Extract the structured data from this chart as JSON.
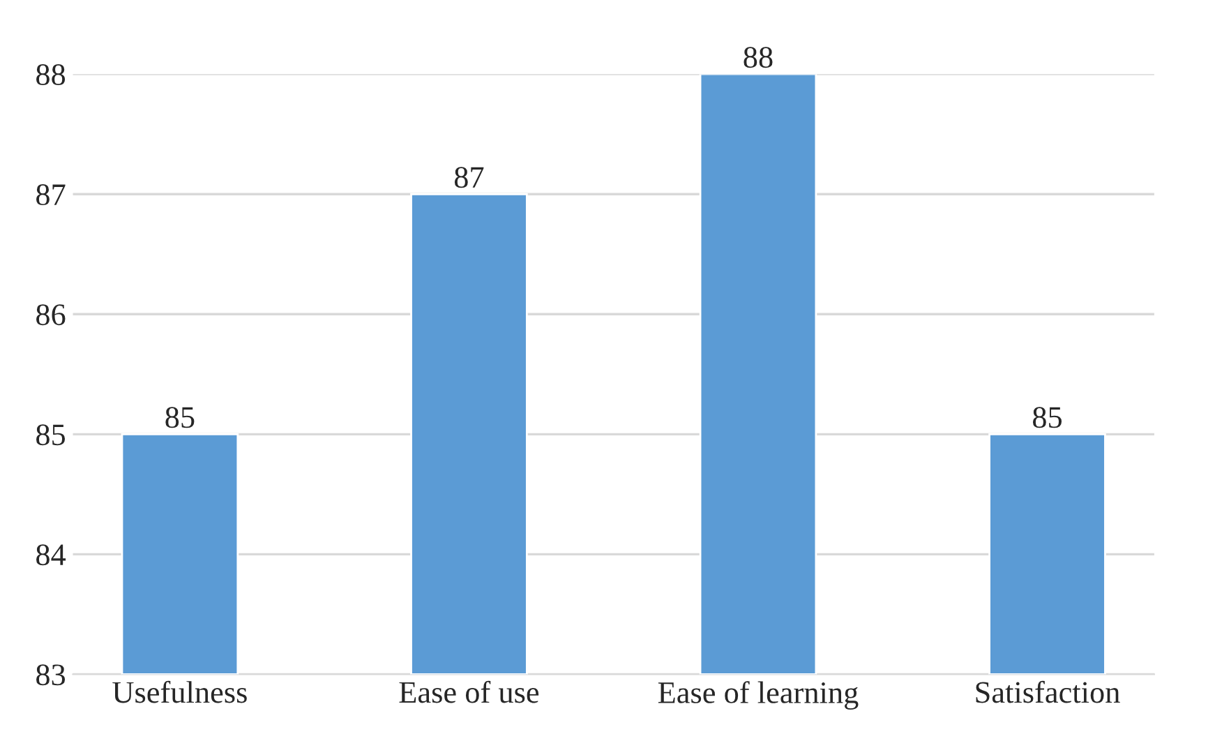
{
  "chart_data": {
    "type": "bar",
    "categories": [
      "Usefulness",
      "Ease of use",
      "Ease of learning",
      "Satisfaction"
    ],
    "values": [
      85,
      87,
      88,
      85
    ],
    "color": "#5b9bd5",
    "ylim": [
      83,
      88
    ],
    "yticks": [
      83,
      84,
      85,
      86,
      87,
      88
    ],
    "grid": "y",
    "data_labels": true
  }
}
